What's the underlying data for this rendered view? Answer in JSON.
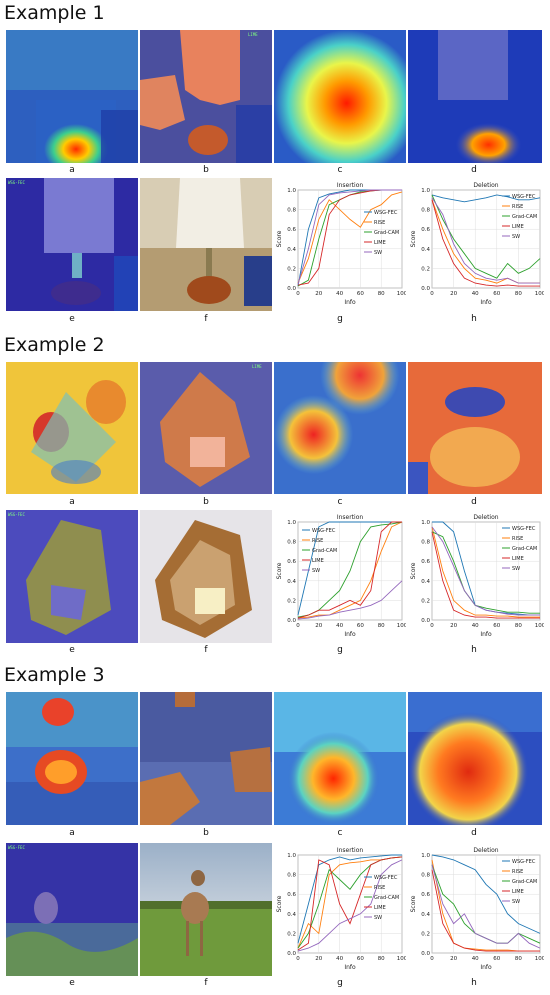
{
  "examples": [
    {
      "title": "Example 1",
      "captions": [
        "a",
        "b",
        "c",
        "d",
        "e",
        "f",
        "g",
        "h"
      ],
      "overlay_labels": {
        "b": "LIME",
        "e": "WSG-FEC"
      }
    },
    {
      "title": "Example 2",
      "captions": [
        "a",
        "b",
        "c",
        "d",
        "e",
        "f",
        "g",
        "h"
      ],
      "overlay_labels": {
        "b": "LIME",
        "e": "WSG-FEC"
      }
    },
    {
      "title": "Example 3",
      "captions": [
        "a",
        "b",
        "c",
        "d",
        "e",
        "f",
        "g",
        "h"
      ],
      "overlay_labels": {
        "e": "WSG-FEC"
      }
    }
  ],
  "series_colors": {
    "WSG-FEC": "#1f77b4",
    "RISE": "#ff7f0e",
    "Grad-CAM": "#2ca02c",
    "LIME": "#d62728",
    "SW": "#9467bd"
  },
  "chart_data": [
    {
      "type": "line",
      "title": "Insertion",
      "xlabel": "Info",
      "ylabel": "Score",
      "xlim": [
        0,
        100
      ],
      "ylim": [
        0,
        1.0
      ],
      "xticks": [
        "0",
        "20",
        "40",
        "60",
        "80",
        "100"
      ],
      "yticks": [
        "0.0",
        "0.2",
        "0.4",
        "0.6",
        "0.8",
        "1.0"
      ],
      "legend_position": "center-right",
      "x": [
        0,
        10,
        20,
        30,
        40,
        50,
        60,
        70,
        80,
        90,
        100
      ],
      "series": [
        {
          "name": "WSG-FEC",
          "values": [
            0.02,
            0.6,
            0.92,
            0.96,
            0.98,
            1.0,
            1.0,
            1.0,
            1.0,
            1.0,
            1.0
          ]
        },
        {
          "name": "RISE",
          "values": [
            0.05,
            0.3,
            0.7,
            0.9,
            0.8,
            0.7,
            0.62,
            0.8,
            0.85,
            0.95,
            0.98
          ]
        },
        {
          "name": "Grad-CAM",
          "values": [
            0.02,
            0.08,
            0.5,
            0.85,
            0.9,
            0.95,
            0.98,
            0.99,
            1.0,
            1.0,
            1.0
          ]
        },
        {
          "name": "LIME",
          "values": [
            0.03,
            0.05,
            0.2,
            0.75,
            0.9,
            0.95,
            0.97,
            0.99,
            1.0,
            1.0,
            1.0
          ]
        },
        {
          "name": "SW",
          "values": [
            0.04,
            0.4,
            0.85,
            0.95,
            0.97,
            0.98,
            0.99,
            1.0,
            1.0,
            1.0,
            1.0
          ]
        }
      ]
    },
    {
      "type": "line",
      "title": "Deletion",
      "xlabel": "Info",
      "ylabel": "Score",
      "xlim": [
        0,
        100
      ],
      "ylim": [
        0,
        1.0
      ],
      "xticks": [
        "0",
        "20",
        "40",
        "60",
        "80",
        "100"
      ],
      "yticks": [
        "0.0",
        "0.2",
        "0.4",
        "0.6",
        "0.8",
        "1.0"
      ],
      "legend_position": "top-right",
      "x": [
        0,
        10,
        20,
        30,
        40,
        50,
        60,
        70,
        80,
        90,
        100
      ],
      "series": [
        {
          "name": "WSG-FEC",
          "values": [
            0.95,
            0.92,
            0.9,
            0.88,
            0.9,
            0.92,
            0.95,
            0.93,
            0.9,
            0.9,
            0.92
          ]
        },
        {
          "name": "RISE",
          "values": [
            0.9,
            0.6,
            0.35,
            0.2,
            0.1,
            0.08,
            0.05,
            0.1,
            0.05,
            0.05,
            0.05
          ]
        },
        {
          "name": "Grad-CAM",
          "values": [
            0.95,
            0.7,
            0.5,
            0.35,
            0.2,
            0.15,
            0.1,
            0.25,
            0.15,
            0.2,
            0.3
          ]
        },
        {
          "name": "LIME",
          "values": [
            0.9,
            0.5,
            0.25,
            0.1,
            0.05,
            0.03,
            0.02,
            0.03,
            0.02,
            0.02,
            0.02
          ]
        },
        {
          "name": "SW",
          "values": [
            0.92,
            0.75,
            0.45,
            0.25,
            0.15,
            0.1,
            0.08,
            0.1,
            0.05,
            0.05,
            0.05
          ]
        }
      ]
    },
    {
      "type": "line",
      "title": "Insertion",
      "xlabel": "Info",
      "ylabel": "Score",
      "xlim": [
        0,
        100
      ],
      "ylim": [
        0,
        1.0
      ],
      "xticks": [
        "0",
        "20",
        "40",
        "60",
        "80",
        "100"
      ],
      "yticks": [
        "0.0",
        "0.2",
        "0.4",
        "0.6",
        "0.8",
        "1.0"
      ],
      "legend_position": "top-left",
      "x": [
        0,
        10,
        20,
        30,
        40,
        50,
        60,
        70,
        80,
        90,
        100
      ],
      "series": [
        {
          "name": "WSG-FEC",
          "values": [
            0.05,
            0.5,
            0.95,
            1.0,
            1.0,
            1.0,
            1.0,
            1.0,
            1.0,
            1.0,
            1.0
          ]
        },
        {
          "name": "RISE",
          "values": [
            0.02,
            0.03,
            0.05,
            0.05,
            0.1,
            0.15,
            0.2,
            0.4,
            0.7,
            0.95,
            1.0
          ]
        },
        {
          "name": "Grad-CAM",
          "values": [
            0.03,
            0.05,
            0.1,
            0.2,
            0.3,
            0.5,
            0.8,
            0.95,
            0.97,
            0.98,
            1.0
          ]
        },
        {
          "name": "LIME",
          "values": [
            0.02,
            0.05,
            0.1,
            0.1,
            0.15,
            0.2,
            0.15,
            0.3,
            0.9,
            1.0,
            1.0
          ]
        },
        {
          "name": "SW",
          "values": [
            0.01,
            0.02,
            0.04,
            0.05,
            0.08,
            0.1,
            0.12,
            0.15,
            0.2,
            0.3,
            0.4
          ]
        }
      ]
    },
    {
      "type": "line",
      "title": "Deletion",
      "xlabel": "Info",
      "ylabel": "Score",
      "xlim": [
        0,
        100
      ],
      "ylim": [
        0,
        1.0
      ],
      "xticks": [
        "0",
        "20",
        "40",
        "60",
        "80",
        "100"
      ],
      "yticks": [
        "0.0",
        "0.2",
        "0.4",
        "0.6",
        "0.8",
        "1.0"
      ],
      "legend_position": "top-right",
      "x": [
        0,
        10,
        20,
        30,
        40,
        50,
        60,
        70,
        80,
        90,
        100
      ],
      "series": [
        {
          "name": "WSG-FEC",
          "values": [
            1.0,
            1.0,
            0.9,
            0.5,
            0.15,
            0.1,
            0.08,
            0.07,
            0.06,
            0.05,
            0.05
          ]
        },
        {
          "name": "RISE",
          "values": [
            0.95,
            0.5,
            0.2,
            0.1,
            0.05,
            0.05,
            0.04,
            0.04,
            0.03,
            0.03,
            0.03
          ]
        },
        {
          "name": "Grad-CAM",
          "values": [
            0.9,
            0.85,
            0.6,
            0.3,
            0.15,
            0.12,
            0.1,
            0.08,
            0.08,
            0.07,
            0.07
          ]
        },
        {
          "name": "LIME",
          "values": [
            0.9,
            0.4,
            0.1,
            0.05,
            0.03,
            0.03,
            0.02,
            0.02,
            0.02,
            0.02,
            0.02
          ]
        },
        {
          "name": "SW",
          "values": [
            0.95,
            0.8,
            0.55,
            0.3,
            0.15,
            0.1,
            0.08,
            0.06,
            0.05,
            0.05,
            0.05
          ]
        }
      ]
    },
    {
      "type": "line",
      "title": "Insertion",
      "xlabel": "Info",
      "ylabel": "Score",
      "xlim": [
        0,
        100
      ],
      "ylim": [
        0,
        1.0
      ],
      "xticks": [
        "0",
        "20",
        "40",
        "60",
        "80",
        "100"
      ],
      "yticks": [
        "0.0",
        "0.2",
        "0.4",
        "0.6",
        "0.8",
        "1.0"
      ],
      "legend_position": "center-right",
      "x": [
        0,
        10,
        20,
        30,
        40,
        50,
        60,
        70,
        80,
        90,
        100
      ],
      "series": [
        {
          "name": "WSG-FEC",
          "values": [
            0.1,
            0.5,
            0.9,
            0.95,
            0.98,
            0.95,
            0.97,
            0.98,
            0.99,
            1.0,
            1.0
          ]
        },
        {
          "name": "RISE",
          "values": [
            0.05,
            0.3,
            0.2,
            0.8,
            0.9,
            0.92,
            0.93,
            0.95,
            0.95,
            0.97,
            0.98
          ]
        },
        {
          "name": "Grad-CAM",
          "values": [
            0.05,
            0.2,
            0.5,
            0.85,
            0.75,
            0.65,
            0.8,
            0.9,
            0.95,
            0.97,
            0.98
          ]
        },
        {
          "name": "LIME",
          "values": [
            0.03,
            0.1,
            0.95,
            0.9,
            0.5,
            0.3,
            0.6,
            0.9,
            0.95,
            0.97,
            0.98
          ]
        },
        {
          "name": "SW",
          "values": [
            0.02,
            0.05,
            0.1,
            0.2,
            0.3,
            0.35,
            0.4,
            0.5,
            0.8,
            0.9,
            0.95
          ]
        }
      ]
    },
    {
      "type": "line",
      "title": "Deletion",
      "xlabel": "Info",
      "ylabel": "Score",
      "xlim": [
        0,
        100
      ],
      "ylim": [
        0,
        1.0
      ],
      "xticks": [
        "0",
        "20",
        "40",
        "60",
        "80",
        "100"
      ],
      "yticks": [
        "0.0",
        "0.2",
        "0.4",
        "0.6",
        "0.8",
        "1.0"
      ],
      "legend_position": "top-right",
      "x": [
        0,
        10,
        20,
        30,
        40,
        50,
        60,
        70,
        80,
        90,
        100
      ],
      "series": [
        {
          "name": "WSG-FEC",
          "values": [
            1.0,
            0.98,
            0.95,
            0.9,
            0.85,
            0.7,
            0.6,
            0.4,
            0.3,
            0.25,
            0.2
          ]
        },
        {
          "name": "RISE",
          "values": [
            0.95,
            0.4,
            0.1,
            0.05,
            0.04,
            0.03,
            0.03,
            0.03,
            0.02,
            0.02,
            0.02
          ]
        },
        {
          "name": "Grad-CAM",
          "values": [
            0.9,
            0.6,
            0.5,
            0.3,
            0.2,
            0.15,
            0.1,
            0.1,
            0.2,
            0.15,
            0.1
          ]
        },
        {
          "name": "LIME",
          "values": [
            0.85,
            0.3,
            0.1,
            0.05,
            0.03,
            0.02,
            0.02,
            0.02,
            0.02,
            0.02,
            0.02
          ]
        },
        {
          "name": "SW",
          "values": [
            0.9,
            0.5,
            0.3,
            0.4,
            0.2,
            0.15,
            0.1,
            0.1,
            0.2,
            0.1,
            0.05
          ]
        }
      ]
    }
  ]
}
